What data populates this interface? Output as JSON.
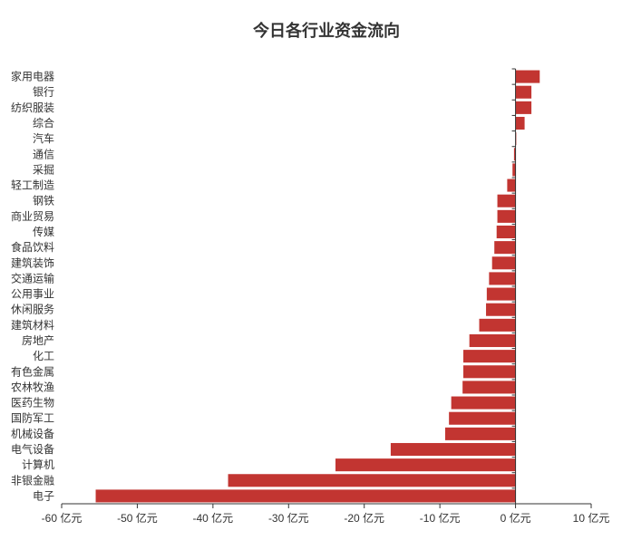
{
  "chart_data": {
    "type": "bar",
    "orientation": "horizontal",
    "title": "今日各行业资金流向",
    "xlabel": "",
    "ylabel": "",
    "unit": "亿元",
    "xlim": [
      -60,
      10
    ],
    "ticks": [
      -60,
      -50,
      -40,
      -30,
      -20,
      -10,
      0,
      10
    ],
    "tick_labels": [
      "-60 亿元",
      "-50 亿元",
      "-40 亿元",
      "-30 亿元",
      "-20 亿元",
      "-10 亿元",
      "0 亿元",
      "10 亿元"
    ],
    "grid": false,
    "legend": "none",
    "bar_color": "#c23531",
    "categories": [
      "家用电器",
      "银行",
      "纺织服装",
      "综合",
      "汽车",
      "通信",
      "采掘",
      "轻工制造",
      "钢铁",
      "商业贸易",
      "传媒",
      "食品饮料",
      "建筑装饰",
      "交通运输",
      "公用事业",
      "休闲服务",
      "建筑材料",
      "房地产",
      "化工",
      "有色金属",
      "农林牧渔",
      "医药生物",
      "国防军工",
      "机械设备",
      "电气设备",
      "计算机",
      "非银金融",
      "电子"
    ],
    "values": [
      3.2,
      2.1,
      2.1,
      1.2,
      0.1,
      -0.2,
      -0.4,
      -1.1,
      -2.4,
      -2.4,
      -2.5,
      -2.8,
      -3.1,
      -3.5,
      -3.8,
      -3.9,
      -4.8,
      -6.1,
      -6.9,
      -6.9,
      -7.0,
      -8.5,
      -8.8,
      -9.3,
      -16.5,
      -23.8,
      -38.0,
      -55.5
    ]
  }
}
